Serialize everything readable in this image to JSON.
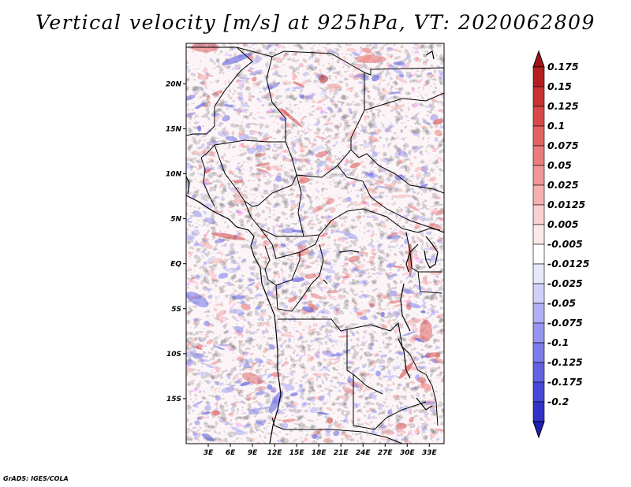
{
  "title": "Vertical velocity [m/s] at 925hPa, VT: 2020062809",
  "credit": "GrADS: IGES/COLA",
  "map": {
    "lon_range": [
      0,
      35
    ],
    "lat_range": [
      -20,
      24.5
    ],
    "lat_ticks": [
      {
        "value": 20,
        "label": "20N"
      },
      {
        "value": 15,
        "label": "15N"
      },
      {
        "value": 10,
        "label": "10N"
      },
      {
        "value": 5,
        "label": "5N"
      },
      {
        "value": 0,
        "label": "EQ"
      },
      {
        "value": -5,
        "label": "5S"
      },
      {
        "value": -10,
        "label": "10S"
      },
      {
        "value": -15,
        "label": "15S"
      }
    ],
    "lon_ticks": [
      {
        "value": 3,
        "label": "3E"
      },
      {
        "value": 6,
        "label": "6E"
      },
      {
        "value": 9,
        "label": "9E"
      },
      {
        "value": 12,
        "label": "12E"
      },
      {
        "value": 15,
        "label": "15E"
      },
      {
        "value": 18,
        "label": "18E"
      },
      {
        "value": 21,
        "label": "21E"
      },
      {
        "value": 24,
        "label": "24E"
      },
      {
        "value": 27,
        "label": "27E"
      },
      {
        "value": 30,
        "label": "30E"
      },
      {
        "value": 33,
        "label": "33E"
      }
    ]
  },
  "colorbar": {
    "levels": [
      {
        "label": "0.175",
        "color": "#b41e1e"
      },
      {
        "label": "0.15",
        "color": "#c83232"
      },
      {
        "label": "0.125",
        "color": "#d84848"
      },
      {
        "label": "0.1",
        "color": "#e26262"
      },
      {
        "label": "0.075",
        "color": "#ea7c7c"
      },
      {
        "label": "0.05",
        "color": "#f09696"
      },
      {
        "label": "0.025",
        "color": "#f6b0b0"
      },
      {
        "label": "0.0125",
        "color": "#fad0d0"
      },
      {
        "label": "0.005",
        "color": "#fde8e8"
      },
      {
        "label": "-0.005",
        "color": "#ffffff"
      },
      {
        "label": "-0.0125",
        "color": "#e8e8fd"
      },
      {
        "label": "-0.025",
        "color": "#d0d0fa"
      },
      {
        "label": "-0.05",
        "color": "#b0b0f6"
      },
      {
        "label": "-0.075",
        "color": "#9696f0"
      },
      {
        "label": "-0.1",
        "color": "#7c7cea"
      },
      {
        "label": "-0.125",
        "color": "#6262e2"
      },
      {
        "label": "-0.175",
        "color": "#4848d8"
      },
      {
        "label": "-0.2",
        "color": "#3232c8"
      }
    ],
    "top_arrow_color": "#a01414",
    "bottom_arrow_color": "#1e1eb4"
  }
}
